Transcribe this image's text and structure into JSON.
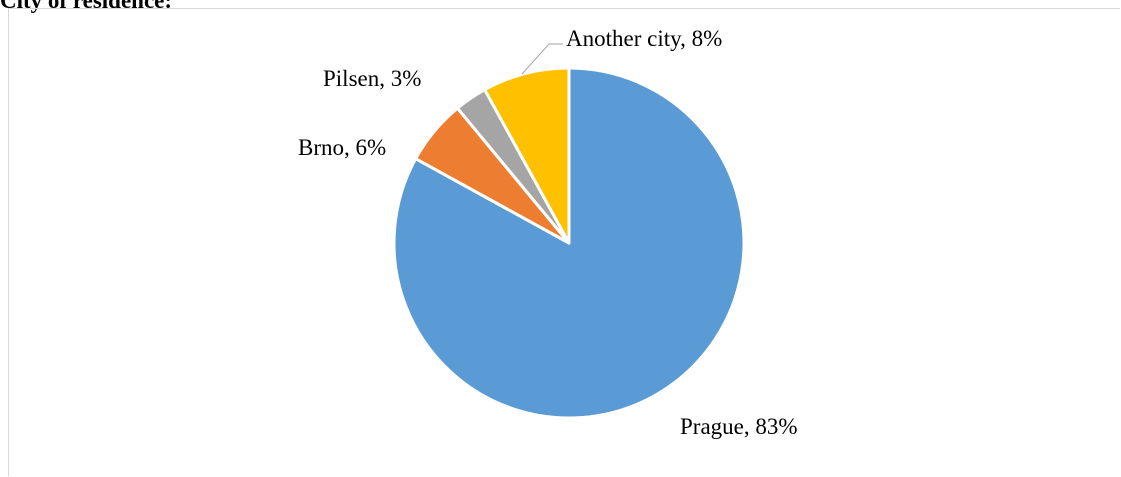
{
  "title": "City of residence:",
  "chart_data": {
    "type": "pie",
    "title": "City of residence:",
    "start_angle_deg": 0,
    "direction": "clockwise",
    "slices": [
      {
        "label": "Prague",
        "value": 83,
        "display": "Prague, 83%",
        "color": "#5b9bd5"
      },
      {
        "label": "Brno",
        "value": 6,
        "display": "Brno, 6%",
        "color": "#ed7d31"
      },
      {
        "label": "Pilsen",
        "value": 3,
        "display": "Pilsen, 3%",
        "color": "#a5a5a5"
      },
      {
        "label": "Another city",
        "value": 8,
        "display": "Another city, 8%",
        "color": "#ffc000"
      }
    ]
  }
}
